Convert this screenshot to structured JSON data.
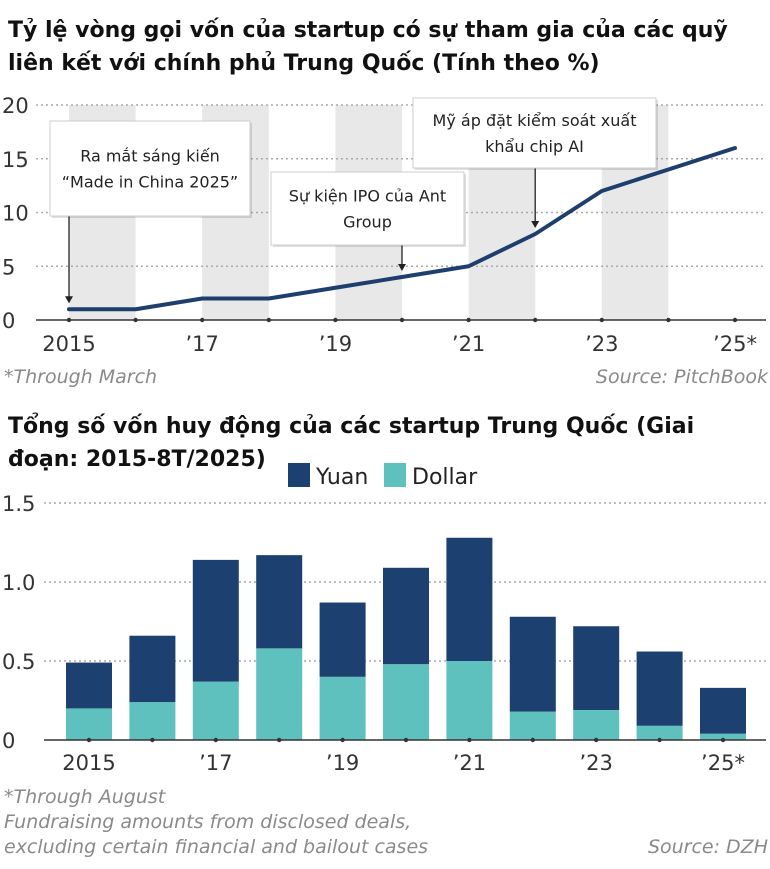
{
  "chart_data": [
    {
      "type": "line",
      "title": "Tỷ lệ vòng gọi vốn của startup có sự tham gia của các quỹ liên kết với chính phủ Trung Quốc (Tính theo %)",
      "x": [
        2015,
        2016,
        2017,
        2018,
        2019,
        2020,
        2021,
        2022,
        2023,
        2024,
        2025
      ],
      "x_tick_labels": [
        "2015",
        "’17",
        "’19",
        "’21",
        "’23",
        "’25*"
      ],
      "series": [
        {
          "values": [
            1,
            1,
            2,
            2,
            3,
            4,
            5,
            8,
            12,
            14,
            16
          ]
        }
      ],
      "ylim": [
        0,
        20
      ],
      "y_ticks": [
        0,
        5,
        10,
        15,
        20
      ],
      "shaded_years": [
        2015,
        2017,
        2019,
        2021,
        2023
      ],
      "annotations": [
        {
          "text": [
            "Ra mắt sáng kiến",
            "“Made in China 2025”"
          ],
          "x": 2015,
          "y": 1
        },
        {
          "text": [
            "Sự kiện IPO của Ant",
            "Group"
          ],
          "x": 2020,
          "y": 4
        },
        {
          "text": [
            "Mỹ áp đặt kiểm soát xuất",
            "khẩu chip AI"
          ],
          "x": 2022,
          "y": 8
        }
      ],
      "footnote": "*Through March",
      "source": "Source: PitchBook",
      "colors": {
        "line": "#1e3e6d",
        "shade": "#e8e8e8"
      }
    },
    {
      "type": "bar",
      "stacked": true,
      "title": "Tổng số vốn huy động của các startup Trung Quốc (Giai đoạn: 2015-8T/2025)",
      "categories": [
        "2015",
        "2016",
        "2017",
        "2018",
        "2019",
        "2020",
        "2021",
        "2022",
        "2023",
        "2024",
        "2025"
      ],
      "x_tick_labels": [
        "2015",
        "’17",
        "’19",
        "’21",
        "’23",
        "’25*"
      ],
      "series": [
        {
          "name": "Dollar",
          "values": [
            0.2,
            0.24,
            0.37,
            0.58,
            0.4,
            0.48,
            0.5,
            0.18,
            0.19,
            0.09,
            0.04
          ]
        },
        {
          "name": "Yuan",
          "values": [
            0.29,
            0.42,
            0.77,
            0.59,
            0.47,
            0.61,
            0.78,
            0.6,
            0.53,
            0.47,
            0.29
          ]
        }
      ],
      "ylim": [
        0,
        1.5
      ],
      "y_ticks": [
        "0",
        "0.5",
        "1.0",
        "1.5"
      ],
      "legend": "top-right",
      "footnotes": [
        "*Through August",
        "Fundraising amounts from disclosed deals,",
        "excluding certain financial and bailout cases"
      ],
      "source": "Source: DZH",
      "colors": {
        "Yuan": "#1c4070",
        "Dollar": "#5fc1bd"
      }
    }
  ]
}
